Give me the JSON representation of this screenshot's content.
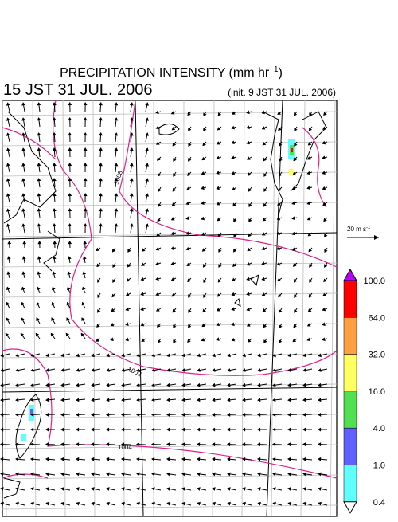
{
  "header": {
    "title": {
      "text": "PRECIPITATION INTENSITY (mm hr",
      "superscript": "−1",
      "close": ")"
    },
    "valid_time": "15 JST 31 JUL. 2006",
    "init_time": "(init. 9 JST 31 JUL. 2006)"
  },
  "wind_scale": {
    "text": "20 m s",
    "superscript": "-1"
  },
  "contours": [
    {
      "label": "1008"
    },
    {
      "label": "1002"
    },
    {
      "label": "1004"
    }
  ],
  "colorbar": {
    "labels": [
      "100.0",
      "64.0",
      "32.0",
      "16.0",
      "4.0",
      "1.0",
      "0.4"
    ],
    "colors": [
      "#c000ff",
      "#ff0000",
      "#ffa040",
      "#ffff60",
      "#50e050",
      "#6060ff",
      "#60ffff",
      "#ffffff"
    ]
  }
}
